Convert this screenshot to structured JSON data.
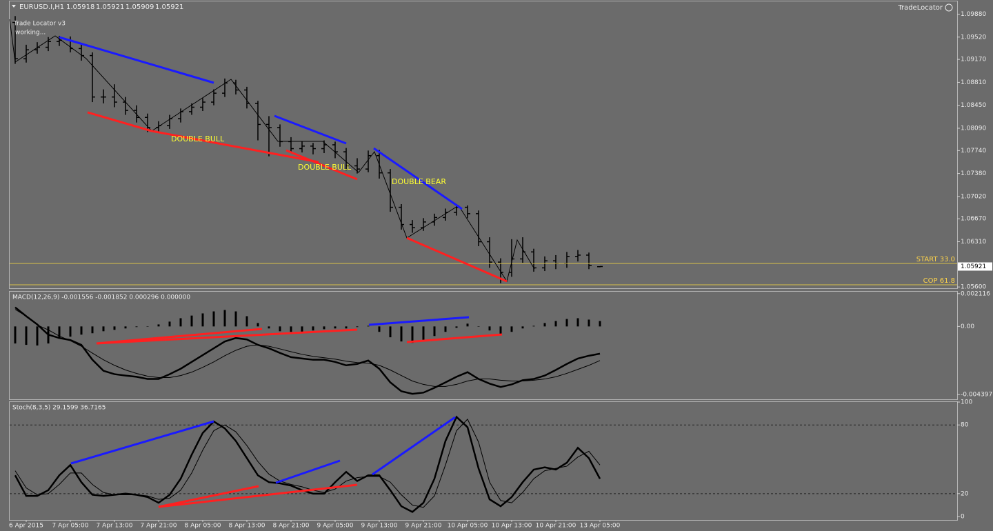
{
  "chart_data": [
    {
      "type": "ohlc",
      "symbol": "EURUSD.I,H1",
      "brand": "TradeLocator",
      "color": "#000000",
      "open": [
        1.0975,
        1.0918,
        1.0932,
        1.0936,
        1.0945,
        1.0947,
        1.0934,
        1.0923,
        1.0858,
        1.0858,
        1.085,
        1.0837,
        1.0826,
        1.081,
        1.0813,
        1.0824,
        1.0835,
        1.0842,
        1.085,
        1.0864,
        1.088,
        1.0869,
        1.0848,
        1.0815,
        1.081,
        1.0788,
        1.0777,
        1.0781,
        1.0777,
        1.0783,
        1.0772,
        1.075,
        1.0745,
        1.0766,
        1.0739,
        1.0685,
        1.0658,
        1.0653,
        1.0662,
        1.0669,
        1.0677,
        1.0685,
        1.0675,
        1.0631,
        1.0599,
        1.0583,
        1.0604,
        1.0615,
        1.059,
        1.0601,
        1.0597,
        1.0608,
        1.061,
        1.05918
      ],
      "high": [
        1.0985,
        1.094,
        1.0944,
        1.0952,
        1.0954,
        1.0953,
        1.094,
        1.0928,
        1.087,
        1.0878,
        1.0858,
        1.0845,
        1.0832,
        1.082,
        1.083,
        1.084,
        1.0848,
        1.0856,
        1.087,
        1.0887,
        1.0885,
        1.0874,
        1.0852,
        1.0828,
        1.0815,
        1.0795,
        1.0788,
        1.0786,
        1.079,
        1.0788,
        1.0778,
        1.0762,
        1.0774,
        1.0775,
        1.0745,
        1.069,
        1.0665,
        1.0668,
        1.0675,
        1.0683,
        1.069,
        1.0688,
        1.068,
        1.0638,
        1.0605,
        1.0635,
        1.0638,
        1.062,
        1.0608,
        1.061,
        1.0615,
        1.0618,
        1.0614,
        1.05921
      ],
      "low": [
        1.091,
        1.0912,
        1.0926,
        1.093,
        1.0938,
        1.0928,
        1.0915,
        1.085,
        1.0848,
        1.0842,
        1.083,
        1.0818,
        1.0803,
        1.0804,
        1.0808,
        1.0818,
        1.083,
        1.0836,
        1.0845,
        1.0858,
        1.0862,
        1.084,
        1.079,
        1.0765,
        1.078,
        1.077,
        1.0771,
        1.0768,
        1.077,
        1.0762,
        1.0743,
        1.0738,
        1.074,
        1.073,
        1.0678,
        1.065,
        1.0645,
        1.0648,
        1.0656,
        1.0664,
        1.0672,
        1.0668,
        1.0624,
        1.059,
        1.0566,
        1.0576,
        1.0598,
        1.0584,
        1.0585,
        1.0588,
        1.059,
        1.06,
        1.0588,
        1.05909
      ],
      "close": [
        1.0918,
        1.0932,
        1.0936,
        1.0945,
        1.0947,
        1.0934,
        1.0923,
        1.0858,
        1.0858,
        1.085,
        1.0837,
        1.0826,
        1.081,
        1.0813,
        1.0824,
        1.0835,
        1.0842,
        1.085,
        1.0864,
        1.088,
        1.0869,
        1.0848,
        1.0815,
        1.081,
        1.0788,
        1.0777,
        1.0781,
        1.0777,
        1.0783,
        1.0772,
        1.075,
        1.0745,
        1.0766,
        1.0739,
        1.0685,
        1.0658,
        1.0653,
        1.0662,
        1.0669,
        1.0677,
        1.0685,
        1.0675,
        1.0631,
        1.0599,
        1.0583,
        1.0604,
        1.0615,
        1.059,
        1.0601,
        1.0597,
        1.0608,
        1.061,
        1.0594,
        1.05921
      ],
      "ylim": [
        1.0558,
        1.1008
      ],
      "yticks": [
        {
          "value": 1.056,
          "label": "1.05600"
        },
        {
          "value": 1.0631,
          "label": "1.06310"
        },
        {
          "value": 1.0667,
          "label": "1.06670"
        },
        {
          "value": 1.0702,
          "label": "1.07020"
        },
        {
          "value": 1.0738,
          "label": "1.07380"
        },
        {
          "value": 1.0774,
          "label": "1.07740"
        },
        {
          "value": 1.0809,
          "label": "1.08090"
        },
        {
          "value": 1.0845,
          "label": "1.08450"
        },
        {
          "value": 1.0881,
          "label": "1.08810"
        },
        {
          "value": 1.0917,
          "label": "1.09170"
        },
        {
          "value": 1.0952,
          "label": "1.09520"
        },
        {
          "value": 1.0988,
          "label": "1.09880"
        }
      ],
      "annotations": [
        "Trade Locator v3",
        "working...",
        "DOUBLE BULL",
        "DOUBLE BULL",
        "DOUBLE BEAR",
        "START 33.0",
        "COP 61.8"
      ]
    },
    {
      "type": "macd",
      "title": "MACD(12,26,9) -0.001556 -0.001852 0.000296 0.000000",
      "color": "#000000",
      "histogram": [
        -0.0011,
        -0.00119,
        -0.00123,
        -0.0011,
        -0.00079,
        -0.00066,
        -0.00053,
        -0.00044,
        -0.00031,
        -0.00022,
        -0.00013,
        -4e-05,
        0,
        0.00013,
        0.00031,
        0.00053,
        0.0007,
        0.00084,
        0.00097,
        0.00106,
        0.00097,
        0.00066,
        0.00022,
        -0.00013,
        -0.00031,
        -0.00035,
        -0.00035,
        -0.00026,
        -0.00018,
        -0.00013,
        -0.00013,
        -4e-05,
        4e-05,
        -0.00035,
        -0.0007,
        -0.00097,
        -0.00106,
        -0.00088,
        -0.00062,
        -0.00035,
        -9e-05,
        0.00018,
        0,
        -0.00026,
        -0.00053,
        -0.00035,
        -0.00013,
        4e-05,
        0.00022,
        0.00035,
        0.00048,
        0.00053,
        0.00044,
        0.00035
      ],
      "series": [
        {
          "color": "#000000",
          "values": [
            0.00123,
            0.00066,
            0.00013,
            -0.00053,
            -0.00075,
            -0.00088,
            -0.00119,
            -0.00215,
            -0.00286,
            -0.00308,
            -0.00317,
            -0.00325,
            -0.00339,
            -0.00339,
            -0.00308,
            -0.00273,
            -0.00229,
            -0.00185,
            -0.00141,
            -0.00097,
            -0.00075,
            -0.00084,
            -0.00119,
            -0.00141,
            -0.00171,
            -0.00198,
            -0.00207,
            -0.00215,
            -0.00215,
            -0.00229,
            -0.00251,
            -0.00242,
            -0.0022,
            -0.00273,
            -0.00361,
            -0.00418,
            -0.00435,
            -0.00427,
            -0.00396,
            -0.00361,
            -0.00325,
            -0.00295,
            -0.00339,
            -0.00369,
            -0.00391,
            -0.00374,
            -0.00347,
            -0.00339,
            -0.00317,
            -0.00281,
            -0.00242,
            -0.00207,
            -0.00189,
            -0.00176
          ]
        },
        {
          "color": "#000000",
          "values": [
            0.0011,
            0.00066,
            9e-05,
            -0.00022,
            -0.00062,
            -0.00092,
            -0.00128,
            -0.00172,
            -0.00215,
            -0.00251,
            -0.00281,
            -0.00303,
            -0.00321,
            -0.0033,
            -0.0033,
            -0.00317,
            -0.00295,
            -0.00264,
            -0.00229,
            -0.00189,
            -0.00154,
            -0.00128,
            -0.00119,
            -0.00128,
            -0.00145,
            -0.00163,
            -0.0018,
            -0.00193,
            -0.00202,
            -0.00211,
            -0.00224,
            -0.00233,
            -0.00237,
            -0.00251,
            -0.00281,
            -0.00317,
            -0.00352,
            -0.00374,
            -0.00387,
            -0.00387,
            -0.00374,
            -0.00352,
            -0.00339,
            -0.00339,
            -0.00347,
            -0.00352,
            -0.00352,
            -0.00347,
            -0.00339,
            -0.00325,
            -0.00303,
            -0.00277,
            -0.00251,
            -0.0022
          ]
        }
      ],
      "ylim": [
        -0.0047,
        0.00224
      ],
      "yticks": [
        -0.004397,
        {
          "value": 0,
          "label": "0.00"
        },
        0.002116
      ]
    },
    {
      "type": "stoch",
      "title": "Stoch(8,3,5) 29.1599 36.7165",
      "categories": [
        null,
        "6 Apr 2015",
        null,
        null,
        null,
        "7 Apr 05:00",
        null,
        null,
        null,
        "7 Apr 13:00",
        null,
        null,
        null,
        "7 Apr 21:00",
        null,
        null,
        null,
        "8 Apr 05:00",
        null,
        null,
        null,
        "8 Apr 13:00",
        null,
        null,
        null,
        "8 Apr 21:00",
        null,
        null,
        null,
        "9 Apr 05:00",
        null,
        null,
        null,
        "9 Apr 13:00",
        null,
        null,
        null,
        "9 Apr 21:00",
        null,
        null,
        null,
        "10 Apr 05:00",
        null,
        null,
        null,
        "10 Apr 13:00",
        null,
        null,
        null,
        "10 Apr 21:00",
        null,
        null,
        null,
        "13 Apr 05:00"
      ],
      "series": [
        {
          "color": "#000000",
          "values": [
            36,
            18,
            18,
            23,
            36,
            45,
            30,
            19,
            18,
            19,
            20,
            19,
            17,
            12,
            19,
            33,
            54,
            73,
            83,
            77,
            66,
            51,
            36,
            30,
            29,
            27,
            23,
            20,
            20,
            30,
            39,
            31,
            36,
            36,
            23,
            9,
            4,
            12,
            33,
            66,
            87,
            78,
            42,
            15,
            9,
            17,
            30,
            41,
            43,
            41,
            47,
            60,
            51,
            33
          ]
        },
        {
          "color": "#000000",
          "values": [
            40,
            25,
            19,
            20,
            28,
            38,
            38,
            28,
            21,
            19,
            19,
            19,
            18,
            15,
            16,
            23,
            38,
            58,
            75,
            80,
            74,
            62,
            48,
            37,
            31,
            28,
            26,
            23,
            21,
            24,
            31,
            34,
            35,
            35,
            30,
            19,
            10,
            8,
            18,
            45,
            75,
            85,
            65,
            30,
            14,
            12,
            21,
            33,
            40,
            42,
            44,
            52,
            57,
            45
          ]
        }
      ],
      "ylim": [
        -3,
        100
      ],
      "yticks": [
        0,
        20,
        80,
        100
      ],
      "levels": [
        20,
        80
      ]
    }
  ]
}
